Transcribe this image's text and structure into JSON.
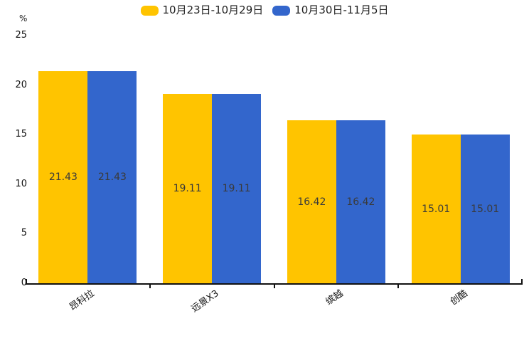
{
  "legend": {
    "items": [
      {
        "label": "10月23日-10月29日",
        "color": "#FFC400"
      },
      {
        "label": "10月30日-11月5日",
        "color": "#3366CC"
      }
    ]
  },
  "chart_data": {
    "type": "bar",
    "categories": [
      "昂科拉",
      "远景X3",
      "缤越",
      "创酷"
    ],
    "series": [
      {
        "name": "10月23日-10月29日",
        "color": "#FFC400",
        "values": [
          21.43,
          19.11,
          16.42,
          15.01
        ]
      },
      {
        "name": "10月30日-11月5日",
        "color": "#3366CC",
        "values": [
          21.43,
          19.11,
          16.42,
          15.01
        ]
      }
    ],
    "ylabel": "%",
    "ylim": [
      0,
      25
    ],
    "yticks": [
      0,
      5,
      10,
      15,
      20,
      25
    ],
    "grid": false,
    "legend_position": "top-center",
    "value_labels": "inside-center",
    "xtick_rotation": 35
  }
}
